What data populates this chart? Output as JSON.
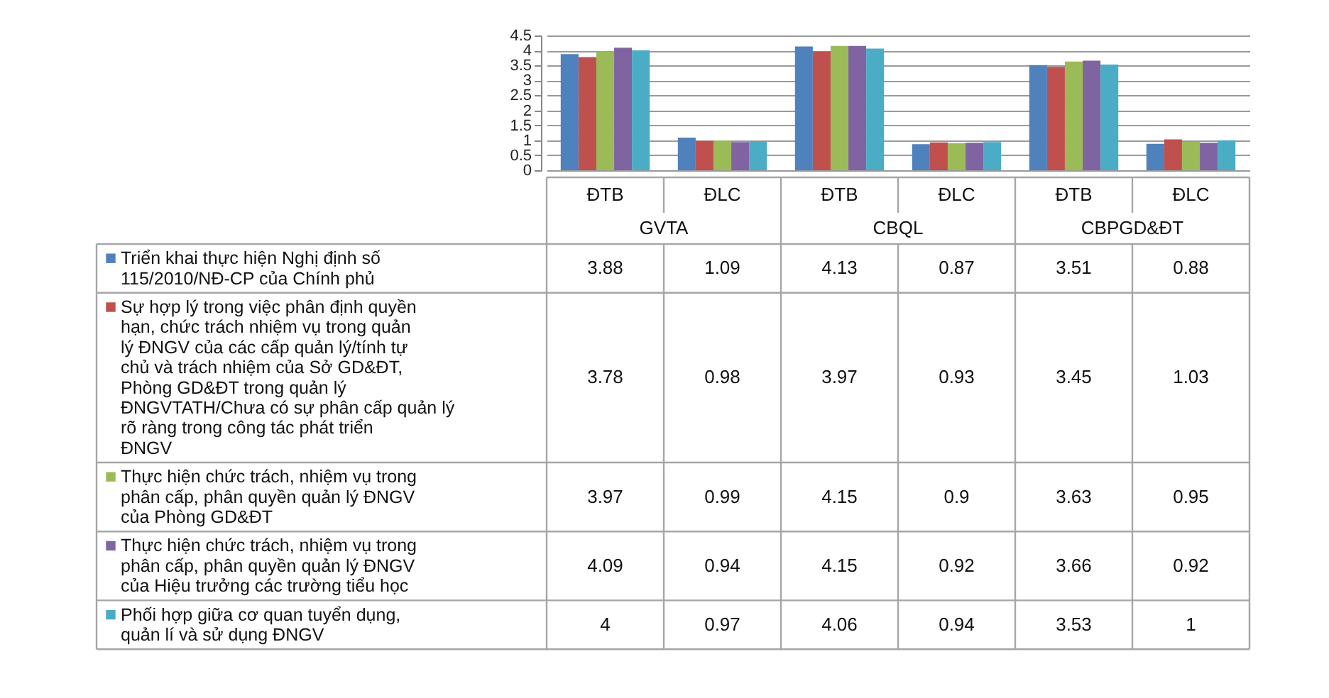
{
  "chart_data": {
    "type": "bar",
    "categories": [
      "ĐTB",
      "ĐLC",
      "ĐTB",
      "ĐLC",
      "ĐTB",
      "ĐLC"
    ],
    "annotations": [
      "GVTA",
      "CBQL",
      "CBPGD&ĐT"
    ],
    "series": [
      {
        "name": "Triển khai thực hiện Nghị định số 115/2010/NĐ-CP của Chính phủ",
        "color": "#4f81bd",
        "values": [
          3.88,
          1.09,
          4.13,
          0.87,
          3.51,
          0.88
        ]
      },
      {
        "name": "Sự hợp lý trong việc phân định quyền hạn, chức trách nhiệm vụ trong quản lý ĐNGV của các cấp quản lý/tính tự chủ và trách nhiệm của Sở GD&ĐT, Phòng GD&ĐT trong quản lý ĐNGVTATH/Chưa có sự phân cấp quản lý rõ ràng trong công tác phát triển ĐNGV",
        "color": "#c0504d",
        "values": [
          3.78,
          0.98,
          3.97,
          0.93,
          3.45,
          1.03
        ]
      },
      {
        "name": "Thực hiện chức trách, nhiệm vụ trong phân cấp, phân quyền quản lý ĐNGV của Phòng GD&ĐT",
        "color": "#9bbb59",
        "values": [
          3.97,
          0.99,
          4.15,
          0.9,
          3.63,
          0.95
        ]
      },
      {
        "name": "Thực hiện chức trách, nhiệm vụ trong phân cấp, phân quyền quản lý ĐNGV của Hiệu trưởng các trường tiểu học",
        "color": "#8064a2",
        "values": [
          4.09,
          0.94,
          4.15,
          0.92,
          3.66,
          0.92
        ]
      },
      {
        "name": "Phối hợp giữa cơ quan tuyển dụng, quản lí và sử dụng ĐNGV",
        "color": "#4bacc6",
        "values": [
          4,
          0.97,
          4.06,
          0.94,
          3.53,
          1
        ]
      }
    ],
    "ylim": [
      0,
      4.5
    ],
    "yticks": [
      0,
      0.5,
      1,
      1.5,
      2,
      2.5,
      3,
      3.5,
      4,
      4.5
    ],
    "grid": true,
    "legend": "bottom",
    "data_labels": true
  }
}
